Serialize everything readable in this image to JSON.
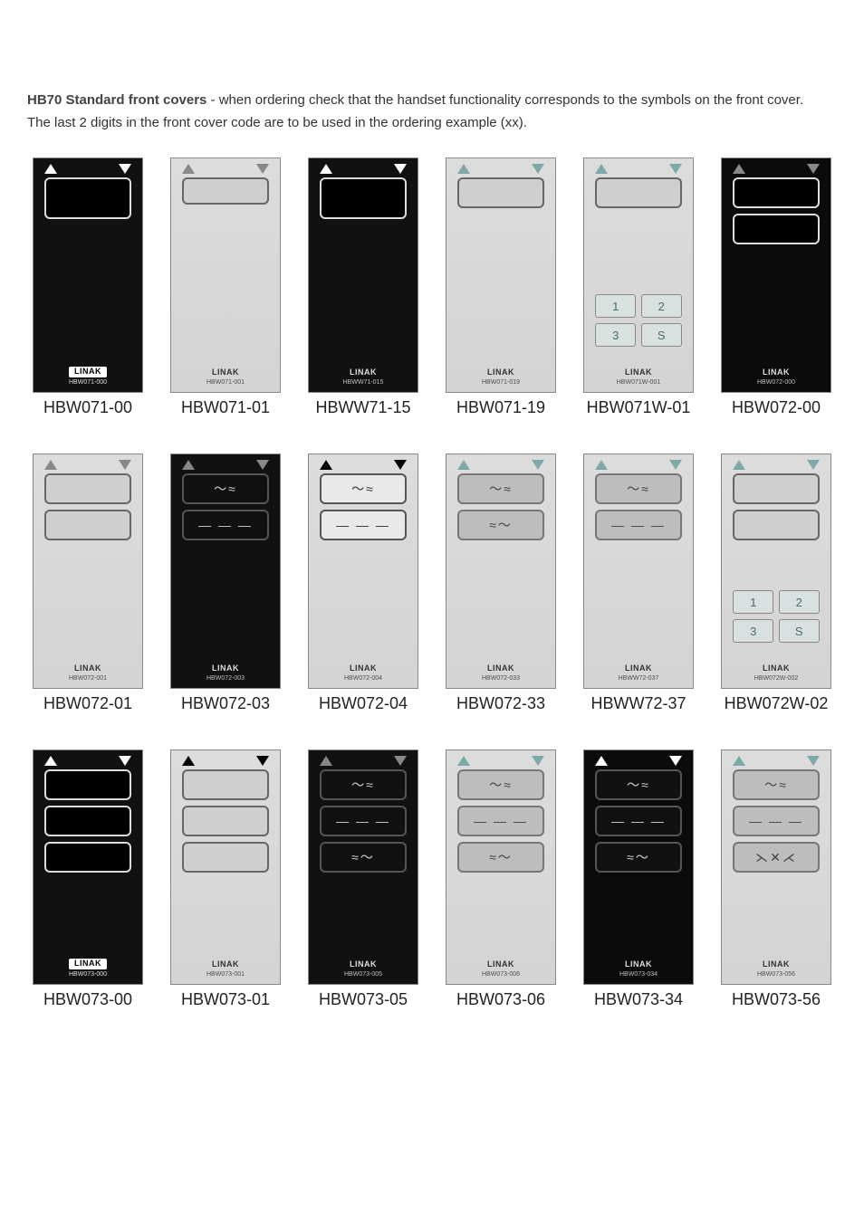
{
  "intro_bold": "HB70 Standard front covers",
  "intro_rest": " - when ordering check that the handset functionality corresponds to the symbols on the front cover.",
  "subline": "The last 2 digits in the front cover code are to be used in the ordering example (xx).",
  "brand": "LINAK",
  "keys": {
    "k1": "1",
    "k2": "2",
    "k3": "3",
    "k4": "S"
  },
  "keys_alt": {
    "k1": "1",
    "k2": "2",
    "k3": "3",
    "k4": "S"
  },
  "items": [
    {
      "caption": "HBW071-00",
      "bg": "dark",
      "tri": "white",
      "disp": [
        "light-on-dark tall"
      ],
      "icos": [],
      "pad": null,
      "brand_style": "inv",
      "brand_sub": "HBW071-000",
      "brand_chip": true
    },
    {
      "caption": "HBW071-01",
      "bg": "light",
      "tri": "grey",
      "disp": [
        "dark-on-light small"
      ],
      "icos": [],
      "pad": null,
      "brand_style": "light",
      "brand_sub": "HBW071-001"
    },
    {
      "caption": "HBWW71-15",
      "bg": "dark",
      "tri": "white",
      "disp": [
        "light-on-dark tall"
      ],
      "icos": [],
      "pad": null,
      "brand_style": "dark",
      "brand_sub": "HBWW71-015"
    },
    {
      "caption": "HBW071-19",
      "bg": "light",
      "tri": "teal",
      "disp": [
        "dark-on-light"
      ],
      "icos": [],
      "pad": null,
      "brand_style": "light",
      "brand_sub": "HBW071-019"
    },
    {
      "caption": "HBW071W-01",
      "bg": "light",
      "tri": "teal",
      "disp": [
        "dark-on-light"
      ],
      "icos": [],
      "pad": "keys",
      "brand_style": "light",
      "brand_sub": "HBW071W-001"
    },
    {
      "caption": "HBW072-00",
      "bg": "darkb",
      "tri": "grey",
      "disp": [
        "light-on-dark",
        "light-on-dark"
      ],
      "icos": [],
      "pad": null,
      "brand_style": "dark",
      "brand_sub": "HBW072-000"
    },
    {
      "caption": "HBW072-01",
      "bg": "light",
      "tri": "grey",
      "disp": [
        "dark-on-light",
        "dark-on-light"
      ],
      "icos": [],
      "pad": null,
      "brand_style": "light",
      "brand_sub": "HBW072-001"
    },
    {
      "caption": "HBW072-03",
      "bg": "dark",
      "tri": "grey",
      "disp": [],
      "icos": [
        "kframe:〜≈",
        "kframe:— — —"
      ],
      "pad": null,
      "brand_style": "dark",
      "brand_sub": "HBW072-003"
    },
    {
      "caption": "HBW072-04",
      "bg": "light",
      "tri": "black",
      "disp": [],
      "icos": [
        "lframe:〜≈",
        "lframe:— — —"
      ],
      "pad": null,
      "brand_style": "light",
      "brand_sub": "HBW072-004"
    },
    {
      "caption": "HBW072-33",
      "bg": "light",
      "tri": "teal",
      "disp": [],
      "icos": [
        "gframe:〜≈",
        "gframe:≈〜"
      ],
      "pad": null,
      "brand_style": "light",
      "brand_sub": "HBW072-033"
    },
    {
      "caption": "HBWW72-37",
      "bg": "light",
      "tri": "teal",
      "disp": [],
      "icos": [
        "gframe:〜≈",
        "gframe:— — —"
      ],
      "pad": null,
      "brand_style": "light",
      "brand_sub": "HBWW72-037"
    },
    {
      "caption": "HBW072W-02",
      "bg": "light",
      "tri": "teal",
      "disp": [
        "dark-on-light",
        "dark-on-light"
      ],
      "icos": [],
      "pad": "keys_alt",
      "brand_style": "light",
      "brand_sub": "HBW072W-002"
    },
    {
      "caption": "HBW073-00",
      "bg": "dark",
      "tri": "white",
      "disp": [
        "light-on-dark",
        "light-on-dark",
        "light-on-dark"
      ],
      "icos": [],
      "pad": null,
      "brand_style": "inv",
      "brand_sub": "HBW073-000",
      "brand_chip": true
    },
    {
      "caption": "HBW073-01",
      "bg": "light",
      "tri": "black",
      "disp": [
        "dark-on-light",
        "dark-on-light",
        "dark-on-light"
      ],
      "icos": [],
      "pad": null,
      "brand_style": "light",
      "brand_sub": "HBW073-001"
    },
    {
      "caption": "HBW073-05",
      "bg": "dark",
      "tri": "grey",
      "disp": [],
      "icos": [
        "kframe:〜≈",
        "kframe:— — —",
        "kframe:≈〜"
      ],
      "pad": null,
      "brand_style": "dark",
      "brand_sub": "HBW073-005"
    },
    {
      "caption": "HBW073-06",
      "bg": "light",
      "tri": "teal",
      "disp": [],
      "icos": [
        "gframe:〜≈",
        "gframe:— — —",
        "gframe:≈〜"
      ],
      "pad": null,
      "brand_style": "light",
      "brand_sub": "HBW073-006"
    },
    {
      "caption": "HBW073-34",
      "bg": "darkb",
      "tri": "white",
      "disp": [],
      "icos": [
        "kframe:〜≈",
        "kframe:— — —",
        "kframe:≈〜"
      ],
      "pad": null,
      "brand_style": "dark",
      "brand_sub": "HBW073-034"
    },
    {
      "caption": "HBW073-56",
      "bg": "light",
      "tri": "teal",
      "disp": [],
      "icos": [
        "gframe:〜≈",
        "gframe:— — —",
        "gframe:⋋✕⋌"
      ],
      "pad": null,
      "brand_style": "light",
      "brand_sub": "HBW073-056"
    }
  ]
}
